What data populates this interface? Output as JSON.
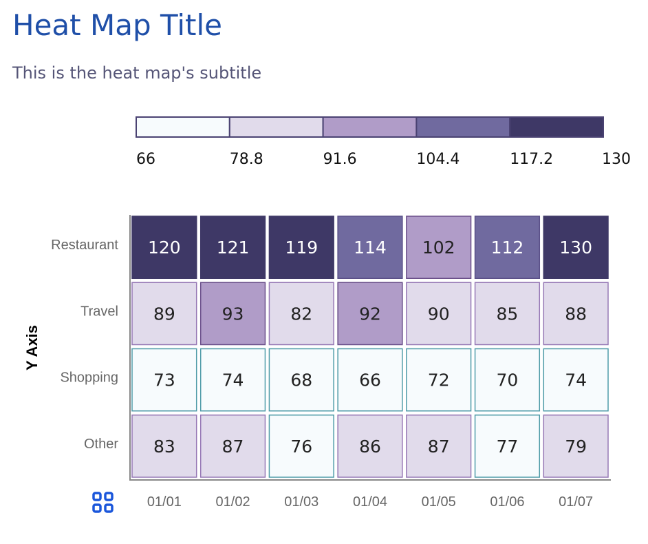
{
  "chart_data": {
    "type": "heatmap",
    "title": "Heat Map Title",
    "subtitle": "This is the heat map's subtitle",
    "xlabel": "",
    "ylabel": "Y Axis",
    "x_categories": [
      "01/01",
      "01/02",
      "01/03",
      "01/04",
      "01/05",
      "01/06",
      "01/07"
    ],
    "y_categories": [
      "Restaurant",
      "Travel",
      "Shopping",
      "Other"
    ],
    "values": [
      [
        120,
        121,
        119,
        114,
        102,
        112,
        130
      ],
      [
        89,
        93,
        82,
        92,
        90,
        85,
        88
      ],
      [
        73,
        74,
        68,
        66,
        72,
        70,
        74
      ],
      [
        83,
        87,
        76,
        86,
        87,
        77,
        79
      ]
    ],
    "legend": {
      "position": "top",
      "thresholds": [
        "66",
        "78.8",
        "91.6",
        "104.4",
        "117.2",
        "130"
      ],
      "colors": [
        "#f7fbfd",
        "#e1dbeb",
        "#b09cc8",
        "#706a9f",
        "#3e3866"
      ],
      "borders": [
        "#4f9ba8",
        "#9678b5",
        "#6a4f8a",
        "#5a5088",
        "#3e3866"
      ]
    },
    "text_colors": {
      "light": "#ffffff",
      "dark": "#222222"
    }
  },
  "toolbar": {
    "icon": "grid-icon",
    "accent": "#1a56db"
  }
}
